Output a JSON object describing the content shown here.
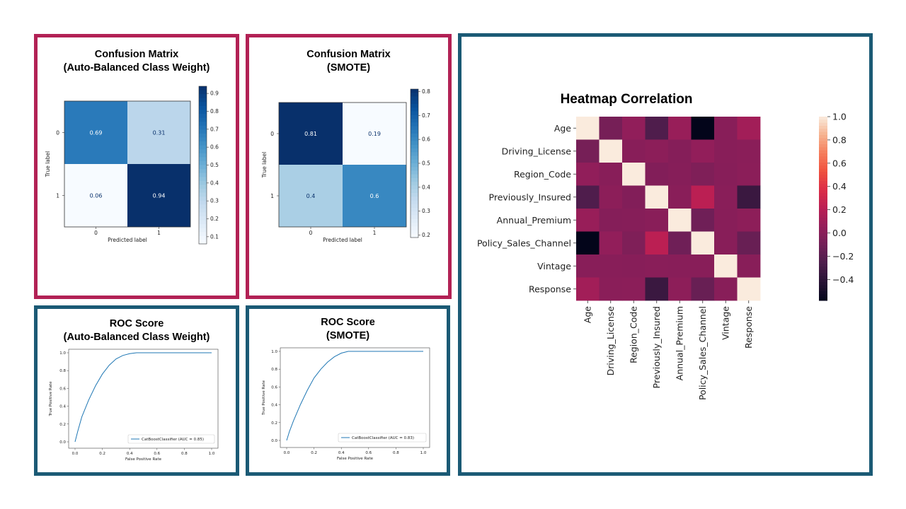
{
  "colors": {
    "crimson": "#b22155",
    "teal": "#1b5a75",
    "line": "#1f77b4"
  },
  "panels": [
    {
      "id": "cm_auto",
      "title_lines": [
        "Confusion  Matrix",
        "(Auto-Balanced Class Weight)"
      ],
      "border": "crimson"
    },
    {
      "id": "cm_smote",
      "title_lines": [
        "Confusion  Matrix",
        "(SMOTE)"
      ],
      "border": "crimson"
    },
    {
      "id": "heatmap",
      "title_lines": [
        "Heatmap Correlation"
      ],
      "border": "teal"
    },
    {
      "id": "roc_auto",
      "title_lines": [
        "ROC Score",
        "(Auto-Balanced Class Weight)"
      ],
      "border": "teal"
    },
    {
      "id": "roc_smote",
      "title_lines": [
        "ROC Score",
        "(SMOTE)"
      ],
      "border": "teal"
    }
  ],
  "chart_data": [
    {
      "id": "cm_auto",
      "type": "heatmap",
      "xlabel": "Predicted label",
      "ylabel": "True label",
      "x_ticks": [
        "0",
        "1"
      ],
      "y_ticks": [
        "0",
        "1"
      ],
      "cells": [
        [
          "0.69",
          "0.31"
        ],
        [
          "0.06",
          "0.94"
        ]
      ],
      "values": [
        [
          0.69,
          0.31
        ],
        [
          0.06,
          0.94
        ]
      ],
      "colormap": "Blues",
      "colorbar_range": [
        0.06,
        0.94
      ],
      "colorbar_ticks": [
        "0.1",
        "0.2",
        "0.3",
        "0.4",
        "0.5",
        "0.6",
        "0.7",
        "0.8",
        "0.9"
      ]
    },
    {
      "id": "cm_smote",
      "type": "heatmap",
      "xlabel": "Predicted label",
      "ylabel": "True label",
      "x_ticks": [
        "0",
        "1"
      ],
      "y_ticks": [
        "0",
        "1"
      ],
      "cells": [
        [
          "0.81",
          "0.19"
        ],
        [
          "0.4",
          "0.6"
        ]
      ],
      "values": [
        [
          0.81,
          0.19
        ],
        [
          0.4,
          0.6
        ]
      ],
      "colormap": "Blues",
      "colorbar_range": [
        0.19,
        0.81
      ],
      "colorbar_ticks": [
        "0.2",
        "0.3",
        "0.4",
        "0.5",
        "0.6",
        "0.7",
        "0.8"
      ]
    },
    {
      "id": "heatmap",
      "type": "heatmap",
      "labels": [
        "Age",
        "Driving_License",
        "Region_Code",
        "Previously_Insured",
        "Annual_Premium",
        "Policy_Sales_Channel",
        "Vintage",
        "Response"
      ],
      "values": [
        [
          1.0,
          -0.08,
          0.04,
          -0.25,
          0.07,
          -0.58,
          -0.001,
          0.11
        ],
        [
          -0.08,
          1.0,
          -0.001,
          0.015,
          -0.012,
          0.044,
          -0.001,
          0.01
        ],
        [
          0.04,
          -0.001,
          1.0,
          -0.025,
          -0.01,
          -0.042,
          -0.003,
          0.011
        ],
        [
          -0.25,
          0.015,
          -0.025,
          1.0,
          0.004,
          0.22,
          0.003,
          -0.34
        ],
        [
          0.07,
          -0.012,
          -0.01,
          0.004,
          1.0,
          -0.11,
          -0.001,
          0.023
        ],
        [
          -0.58,
          0.044,
          -0.042,
          0.22,
          -0.11,
          1.0,
          0.0,
          -0.14
        ],
        [
          -0.001,
          -0.001,
          -0.003,
          0.003,
          -0.001,
          0.0,
          1.0,
          -0.001
        ],
        [
          0.11,
          0.01,
          0.011,
          -0.34,
          0.023,
          -0.14,
          -0.001,
          1.0
        ]
      ],
      "colormap": "rocket",
      "colorbar_range": [
        -0.58,
        1.0
      ],
      "colorbar_ticks": [
        "1.0",
        "0.8",
        "0.6",
        "0.4",
        "0.2",
        "0.0",
        "−0.2",
        "−0.4"
      ],
      "colorbar_tick_values": [
        1.0,
        0.8,
        0.6,
        0.4,
        0.2,
        0.0,
        -0.2,
        -0.4
      ]
    },
    {
      "id": "roc_auto",
      "type": "line",
      "xlabel": "False Positive Rate",
      "ylabel": "True Positive Rate",
      "xlim": [
        0,
        1
      ],
      "ylim": [
        0,
        1
      ],
      "x_ticks": [
        "0.0",
        "0.2",
        "0.4",
        "0.6",
        "0.8",
        "1.0"
      ],
      "y_ticks": [
        "0.0",
        "0.2",
        "0.4",
        "0.6",
        "0.8",
        "1.0"
      ],
      "legend": "CatBoostClassifier (AUC = 0.85)",
      "legend_position": "lower right",
      "series": [
        {
          "name": "CatBoostClassifier (AUC = 0.85)",
          "x": [
            0.0,
            0.02,
            0.05,
            0.1,
            0.15,
            0.2,
            0.25,
            0.3,
            0.35,
            0.4,
            0.45,
            0.5,
            0.6,
            0.8,
            1.0
          ],
          "y": [
            0.0,
            0.12,
            0.28,
            0.47,
            0.63,
            0.76,
            0.86,
            0.93,
            0.97,
            0.99,
            1.0,
            1.0,
            1.0,
            1.0,
            1.0
          ]
        }
      ]
    },
    {
      "id": "roc_smote",
      "type": "line",
      "xlabel": "False Positive Rate",
      "ylabel": "True Positive Rate",
      "xlim": [
        0,
        1
      ],
      "ylim": [
        0,
        1
      ],
      "x_ticks": [
        "0.0",
        "0.2",
        "0.4",
        "0.6",
        "0.8",
        "1.0"
      ],
      "y_ticks": [
        "0.0",
        "0.2",
        "0.4",
        "0.6",
        "0.8",
        "1.0"
      ],
      "legend": "CatBoostClassifier (AUC = 0.83)",
      "legend_position": "lower right",
      "series": [
        {
          "name": "CatBoostClassifier (AUC = 0.83)",
          "x": [
            0.0,
            0.02,
            0.05,
            0.1,
            0.15,
            0.2,
            0.25,
            0.3,
            0.35,
            0.4,
            0.45,
            0.5,
            0.6,
            0.8,
            1.0
          ],
          "y": [
            0.0,
            0.1,
            0.22,
            0.4,
            0.56,
            0.7,
            0.8,
            0.88,
            0.94,
            0.98,
            1.0,
            1.0,
            1.0,
            1.0,
            1.0
          ]
        }
      ]
    }
  ]
}
